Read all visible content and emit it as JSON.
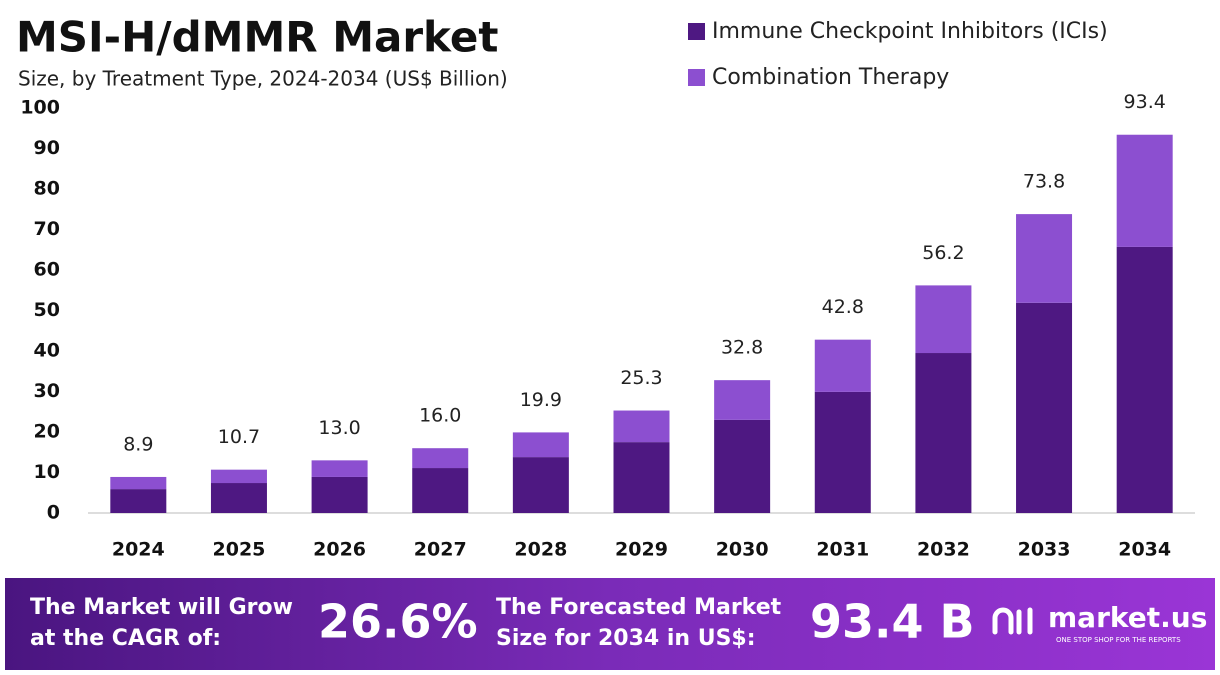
{
  "chart_data": {
    "type": "stacked-bar",
    "title": "MSI-H/dMMR Market",
    "subtitle": "Size, by Treatment Type, 2024-2034 (US$ Billion)",
    "categories": [
      "2024",
      "2025",
      "2026",
      "2027",
      "2028",
      "2029",
      "2030",
      "2031",
      "2032",
      "2033",
      "2034"
    ],
    "series": [
      {
        "name": "Immune Checkpoint Inhibitors (ICIs)",
        "color": "#4e1882",
        "values": [
          5.9,
          7.4,
          8.9,
          11.1,
          13.8,
          17.5,
          23.0,
          29.9,
          39.5,
          51.9,
          65.7
        ]
      },
      {
        "name": "Combination Therapy",
        "color": "#8c4fd0",
        "values": [
          3.0,
          3.3,
          4.1,
          4.9,
          6.1,
          7.8,
          9.8,
          12.9,
          16.7,
          21.9,
          27.7
        ]
      }
    ],
    "total_labels": [
      "8.9",
      "10.7",
      "13.0",
      "16.0",
      "19.9",
      "25.3",
      "32.8",
      "42.8",
      "56.2",
      "73.8",
      "93.4"
    ],
    "ylim": [
      0,
      100
    ],
    "yticks": [
      0,
      10,
      20,
      30,
      40,
      50,
      60,
      70,
      80,
      90,
      100
    ],
    "grid": false,
    "legend": "top-right"
  },
  "footer": {
    "cagr_label": [
      "The Market will Grow",
      "at the CAGR of:"
    ],
    "cagr": "26.6%",
    "forecast_label": [
      "The Forecasted Market",
      "Size for 2034 in US$:"
    ],
    "forecast": "93.4 B",
    "brand": "market.us",
    "tagline": "ONE STOP SHOP FOR THE REPORTS"
  }
}
